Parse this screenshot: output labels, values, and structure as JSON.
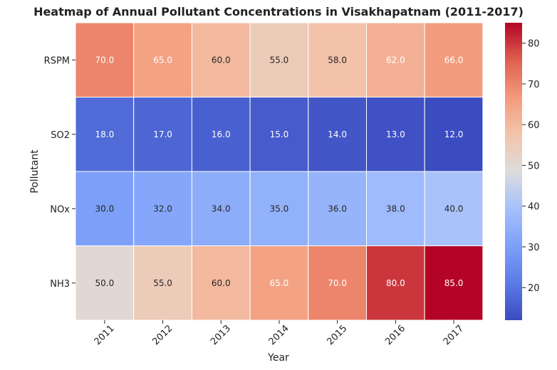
{
  "chart_data": {
    "type": "heatmap",
    "title": "Heatmap of Annual Pollutant Concentrations in Visakhapatnam (2011-2017)",
    "xlabel": "Year",
    "ylabel": "Pollutant",
    "x_categories": [
      "2011",
      "2012",
      "2013",
      "2014",
      "2015",
      "2016",
      "2017"
    ],
    "y_categories": [
      "RSPM",
      "SO2",
      "NOx",
      "NH3"
    ],
    "values": [
      [
        70.0,
        65.0,
        60.0,
        55.0,
        58.0,
        62.0,
        66.0
      ],
      [
        18.0,
        17.0,
        16.0,
        15.0,
        14.0,
        13.0,
        12.0
      ],
      [
        30.0,
        32.0,
        34.0,
        35.0,
        36.0,
        38.0,
        40.0
      ],
      [
        50.0,
        55.0,
        60.0,
        65.0,
        70.0,
        80.0,
        85.0
      ]
    ],
    "value_labels": [
      [
        "70.0",
        "65.0",
        "60.0",
        "55.0",
        "58.0",
        "62.0",
        "66.0"
      ],
      [
        "18.0",
        "17.0",
        "16.0",
        "15.0",
        "14.0",
        "13.0",
        "12.0"
      ],
      [
        "30.0",
        "32.0",
        "34.0",
        "35.0",
        "36.0",
        "38.0",
        "40.0"
      ],
      [
        "50.0",
        "55.0",
        "60.0",
        "65.0",
        "70.0",
        "80.0",
        "85.0"
      ]
    ],
    "colormap": "coolwarm",
    "vmin": 12,
    "vmax": 85,
    "colorbar_ticks": [
      "20",
      "30",
      "40",
      "50",
      "60",
      "70",
      "80"
    ]
  }
}
